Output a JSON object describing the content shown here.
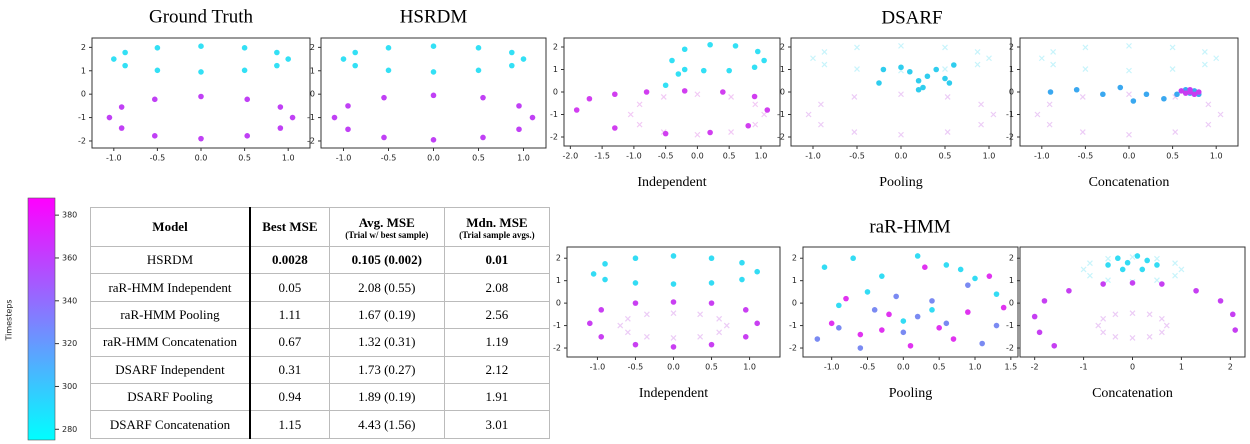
{
  "group_titles": [
    "DSARF",
    "raR-HMM"
  ],
  "chart_data": [
    {
      "type": "scatter",
      "title": "Ground Truth",
      "xlim": [
        -1.25,
        1.25
      ],
      "ylim": [
        -2.3,
        2.4
      ],
      "xticks": [
        {
          "value": -1,
          "label": "-1.0"
        },
        {
          "value": -0.5,
          "label": "-0.5"
        },
        {
          "value": 0,
          "label": "0.0"
        },
        {
          "value": 0.5,
          "label": "0.5"
        },
        {
          "value": 1,
          "label": "1.0"
        }
      ],
      "yticks": [
        -2,
        -1,
        0,
        1,
        2
      ],
      "series": [
        {
          "color": "#33e0f5",
          "marker": "o",
          "x": [
            1,
            0.87,
            0.5,
            0,
            -0.5,
            -0.87,
            -1,
            -0.87,
            -0.5,
            0,
            0.5,
            0.87
          ],
          "y": [
            1.5,
            1.78,
            1.98,
            2.05,
            1.98,
            1.78,
            1.5,
            1.22,
            1.02,
            0.95,
            1.02,
            1.22
          ]
        },
        {
          "color": "#c040f5",
          "marker": "o",
          "x": [
            1.05,
            0.91,
            0.53,
            0,
            -0.53,
            -0.91,
            -1.05,
            -0.91,
            -0.53,
            0,
            0.53,
            0.91
          ],
          "y": [
            -1,
            -0.55,
            -0.22,
            -0.1,
            -0.22,
            -0.55,
            -1,
            -1.45,
            -1.78,
            -1.9,
            -1.78,
            -1.45
          ]
        }
      ]
    },
    {
      "type": "scatter",
      "title": "HSRDM",
      "xlim": [
        -1.25,
        1.25
      ],
      "ylim": [
        -2.3,
        2.4
      ],
      "xticks": [
        {
          "value": -1,
          "label": "-1.0"
        },
        {
          "value": -0.5,
          "label": "-0.5"
        },
        {
          "value": 0,
          "label": "0.0"
        },
        {
          "value": 0.5,
          "label": "0.5"
        },
        {
          "value": 1,
          "label": "1.0"
        }
      ],
      "yticks": [
        -2,
        -1,
        0,
        1,
        2
      ],
      "series": [
        {
          "color": "#33e0f5",
          "marker": "o",
          "x": [
            1,
            0.87,
            0.5,
            0,
            -0.5,
            -0.87,
            -1,
            -0.87,
            -0.5,
            0,
            0.5,
            0.87
          ],
          "y": [
            1.5,
            1.78,
            1.98,
            2.05,
            1.98,
            1.78,
            1.5,
            1.22,
            1.02,
            0.95,
            1.02,
            1.22
          ]
        },
        {
          "color": "#c040f5",
          "marker": "o",
          "x": [
            1.1,
            0.95,
            0.55,
            0,
            -0.55,
            -0.95,
            -1.1,
            -0.95,
            -0.55,
            0,
            0.55,
            0.95
          ],
          "y": [
            -1,
            -0.5,
            -0.15,
            -0.05,
            -0.15,
            -0.5,
            -1,
            -1.5,
            -1.85,
            -1.95,
            -1.85,
            -1.5
          ]
        }
      ]
    },
    {
      "type": "scatter",
      "caption": "Independent",
      "xlim": [
        -2.1,
        1.3
      ],
      "ylim": [
        -2.4,
        2.4
      ],
      "xticks": [
        {
          "value": -2,
          "label": "-2.0"
        },
        {
          "value": -1.5,
          "label": "-1.5"
        },
        {
          "value": -1,
          "label": "-1.0"
        },
        {
          "value": -0.5,
          "label": "-0.5"
        },
        {
          "value": 0,
          "label": "0.0"
        },
        {
          "value": 0.5,
          "label": "0.5"
        },
        {
          "value": 1,
          "label": "1.0"
        }
      ],
      "yticks": [
        -2,
        -1,
        0,
        1,
        2
      ],
      "series": [
        {
          "color": "#f2c9f5",
          "marker": "x",
          "x": [
            1.05,
            0.91,
            0.53,
            0,
            -0.53,
            -0.91,
            -1.05,
            -0.91,
            -0.53,
            0,
            0.53,
            0.91
          ],
          "y": [
            -1,
            -0.55,
            -0.22,
            -0.1,
            -0.22,
            -0.55,
            -1,
            -1.45,
            -1.78,
            -1.9,
            -1.78,
            -1.45
          ]
        },
        {
          "color": "#33e0f5",
          "marker": "o",
          "x": [
            -0.5,
            -0.3,
            -0.4,
            -0.2,
            0.2,
            0.6,
            0.95,
            1.05,
            0.9,
            0.5,
            0.1,
            -0.2
          ],
          "y": [
            0.3,
            0.8,
            1.4,
            1.9,
            2.1,
            2.05,
            1.8,
            1.4,
            1.1,
            0.95,
            0.95,
            1.0
          ]
        },
        {
          "color": "#d13ef0",
          "marker": "o",
          "x": [
            -1.9,
            -1.7,
            -1.3,
            -0.8,
            -0.2,
            0.4,
            0.9,
            1.1,
            0.8,
            0.2,
            -0.5,
            -1.3
          ],
          "y": [
            -0.8,
            -0.3,
            -0.1,
            0,
            0.05,
            0,
            -0.2,
            -0.8,
            -1.5,
            -1.8,
            -1.85,
            -1.6
          ]
        }
      ]
    },
    {
      "type": "scatter",
      "caption": "Pooling",
      "xlim": [
        -1.25,
        1.25
      ],
      "ylim": [
        -2.4,
        2.4
      ],
      "xticks": [
        {
          "value": -1,
          "label": "-1.0"
        },
        {
          "value": -0.5,
          "label": "-0.5"
        },
        {
          "value": 0,
          "label": "0.0"
        },
        {
          "value": 0.5,
          "label": "0.5"
        },
        {
          "value": 1,
          "label": "1.0"
        }
      ],
      "yticks": [
        -2,
        -1,
        0,
        1,
        2
      ],
      "series": [
        {
          "color": "#c8f4fb",
          "marker": "x",
          "x": [
            1,
            0.87,
            0.5,
            0,
            -0.5,
            -0.87,
            -1,
            -0.87,
            -0.5,
            0,
            0.5,
            0.87
          ],
          "y": [
            1.5,
            1.78,
            1.98,
            2.05,
            1.98,
            1.78,
            1.5,
            1.22,
            1.02,
            0.95,
            1.02,
            1.22
          ]
        },
        {
          "color": "#ecccf6",
          "marker": "x",
          "x": [
            1.05,
            0.91,
            0.53,
            0,
            -0.53,
            -0.91,
            -1.05,
            -0.91,
            -0.53,
            0,
            0.53,
            0.91
          ],
          "y": [
            -1,
            -0.55,
            -0.22,
            -0.1,
            -0.22,
            -0.55,
            -1,
            -1.45,
            -1.78,
            -1.9,
            -1.78,
            -1.45
          ]
        },
        {
          "color": "#2fcdee",
          "marker": "o",
          "x": [
            -0.25,
            -0.2,
            0,
            0.1,
            0.2,
            0.3,
            0.4,
            0.5,
            0.55,
            0.6,
            0.25,
            0.2
          ],
          "y": [
            0.4,
            1.0,
            1.1,
            0.9,
            0.5,
            0.7,
            1.0,
            0.6,
            0.4,
            1.2,
            0.2,
            0.1
          ]
        }
      ]
    },
    {
      "type": "scatter",
      "caption": "Concatenation",
      "xlim": [
        -1.25,
        1.25
      ],
      "ylim": [
        -2.4,
        2.4
      ],
      "xticks": [
        {
          "value": -1,
          "label": "-1.0"
        },
        {
          "value": -0.5,
          "label": "-0.5"
        },
        {
          "value": 0,
          "label": "0.0"
        },
        {
          "value": 0.5,
          "label": "0.5"
        },
        {
          "value": 1,
          "label": "1.0"
        }
      ],
      "yticks": [
        -2,
        -1,
        0,
        1,
        2
      ],
      "series": [
        {
          "color": "#c8f4fb",
          "marker": "x",
          "x": [
            1,
            0.87,
            0.5,
            0,
            -0.5,
            -0.87,
            -1,
            -0.87,
            -0.5,
            0,
            0.5,
            0.87
          ],
          "y": [
            1.5,
            1.78,
            1.98,
            2.05,
            1.98,
            1.78,
            1.5,
            1.22,
            1.02,
            0.95,
            1.02,
            1.22
          ]
        },
        {
          "color": "#ecccf6",
          "marker": "x",
          "x": [
            1.05,
            0.91,
            0.53,
            0,
            -0.53,
            -0.91,
            -1.05,
            -0.91,
            -0.53,
            0,
            0.53,
            0.91
          ],
          "y": [
            -1,
            -0.55,
            -0.22,
            -0.1,
            -0.22,
            -0.55,
            -1,
            -1.45,
            -1.78,
            -1.9,
            -1.78,
            -1.45
          ]
        },
        {
          "color": "#3aa8f0",
          "marker": "o",
          "x": [
            -0.9,
            -0.6,
            -0.3,
            -0.1,
            0.05,
            0.2,
            0.4,
            0.55,
            0.65,
            0.7,
            0.75,
            0.8
          ],
          "y": [
            0.0,
            0.1,
            -0.1,
            0.2,
            -0.4,
            -0.1,
            -0.3,
            -0.1,
            0.1,
            -0.05,
            0.05,
            -0.1
          ]
        },
        {
          "color": "#c83cf0",
          "marker": "o",
          "x": [
            0.6,
            0.65,
            0.7,
            0.75,
            0.8,
            0.7
          ],
          "y": [
            0.05,
            -0.05,
            0.1,
            -0.1,
            0,
            0
          ]
        }
      ]
    },
    {
      "type": "scatter",
      "caption": "Independent",
      "xlim": [
        -1.4,
        1.4
      ],
      "ylim": [
        -2.4,
        2.5
      ],
      "xticks": [
        {
          "value": -1,
          "label": "-1.0"
        },
        {
          "value": -0.5,
          "label": "-0.5"
        },
        {
          "value": 0,
          "label": "0.0"
        },
        {
          "value": 0.5,
          "label": "0.5"
        },
        {
          "value": 1,
          "label": "1.0"
        }
      ],
      "yticks": [
        -2,
        -1,
        0,
        1,
        2
      ],
      "series": [
        {
          "color": "#ecccf6",
          "marker": "x",
          "x": [
            0.7,
            0.6,
            0.35,
            0,
            -0.35,
            -0.6,
            -0.7,
            -0.6,
            -0.35,
            0,
            0.35,
            0.6
          ],
          "y": [
            -1,
            -0.7,
            -0.5,
            -0.45,
            -0.5,
            -0.7,
            -1,
            -1.3,
            -1.5,
            -1.55,
            -1.5,
            -1.3
          ]
        },
        {
          "color": "#33dcf4",
          "marker": "o",
          "x": [
            -1.05,
            -0.9,
            -0.5,
            0,
            0.5,
            0.9,
            1.1,
            0.9,
            0.5,
            0,
            -0.5,
            -0.9
          ],
          "y": [
            1.3,
            1.75,
            2.0,
            2.1,
            2.0,
            1.8,
            1.4,
            1.05,
            0.9,
            0.85,
            0.9,
            1.05
          ]
        },
        {
          "color": "#c93ff2",
          "marker": "o",
          "x": [
            -1.1,
            -0.95,
            -0.5,
            0,
            0.5,
            0.95,
            1.1,
            0.95,
            0.5,
            0,
            -0.5,
            -0.95
          ],
          "y": [
            -0.9,
            -0.3,
            0,
            0.05,
            0,
            -0.3,
            -0.9,
            -1.5,
            -1.85,
            -1.95,
            -1.85,
            -1.5
          ]
        }
      ]
    },
    {
      "type": "scatter",
      "caption": "Pooling",
      "xlim": [
        -1.4,
        1.6
      ],
      "ylim": [
        -2.4,
        2.5
      ],
      "xticks": [
        {
          "value": -1,
          "label": "-1.0"
        },
        {
          "value": -0.5,
          "label": "-0.5"
        },
        {
          "value": 0,
          "label": "0.0"
        },
        {
          "value": 0.5,
          "label": "0.5"
        },
        {
          "value": 1,
          "label": "1.0"
        },
        {
          "value": 1.5,
          "label": "1.5"
        }
      ],
      "yticks": [
        -2,
        -1,
        0,
        1,
        2
      ],
      "series": [
        {
          "color": "#33dcf4",
          "marker": "o",
          "x": [
            -1.1,
            -0.7,
            -0.3,
            0.2,
            0.6,
            1.0,
            -0.9,
            0.4,
            1.3,
            -0.5,
            0.8,
            0.0
          ],
          "y": [
            1.6,
            2.0,
            1.2,
            2.1,
            1.7,
            1.1,
            -0.1,
            -0.3,
            0.4,
            0.5,
            1.5,
            -0.8
          ]
        },
        {
          "color": "#e033f0",
          "marker": "o",
          "x": [
            -1.0,
            -0.6,
            -0.2,
            0.1,
            0.5,
            0.9,
            1.2,
            -0.8,
            0.3,
            0.7,
            1.4,
            -0.3
          ],
          "y": [
            -0.9,
            -1.4,
            -0.5,
            -1.9,
            -1.1,
            -0.4,
            1.2,
            0.2,
            1.6,
            -1.6,
            -0.2,
            -1.2
          ]
        },
        {
          "color": "#7a8af2",
          "marker": "o",
          "x": [
            -1.2,
            -0.4,
            0.0,
            0.6,
            1.1,
            -0.9,
            0.4,
            0.9,
            -0.1,
            1.3,
            -0.6,
            0.2
          ],
          "y": [
            -1.6,
            -0.3,
            -1.3,
            -0.9,
            -1.8,
            -1.1,
            0.1,
            0.8,
            0.3,
            -1.0,
            -2.0,
            -0.6
          ]
        }
      ]
    },
    {
      "type": "scatter",
      "caption": "Concatenation",
      "xlim": [
        -2.3,
        2.3
      ],
      "ylim": [
        -2.4,
        2.5
      ],
      "xticks": [
        -2,
        -1,
        0,
        1,
        2
      ],
      "yticks": [
        -2,
        -1,
        0,
        1,
        2
      ],
      "series": [
        {
          "color": "#c8f4fb",
          "marker": "x",
          "x": [
            1,
            0.87,
            0.5,
            0,
            -0.5,
            -0.87,
            -1,
            -0.87,
            -0.5,
            0,
            0.5,
            0.87
          ],
          "y": [
            1.5,
            1.78,
            1.98,
            2.05,
            1.98,
            1.78,
            1.5,
            1.22,
            1.02,
            0.95,
            1.02,
            1.22
          ]
        },
        {
          "color": "#ecccf6",
          "marker": "x",
          "x": [
            0.7,
            0.6,
            0.35,
            0,
            -0.35,
            -0.6,
            -0.7,
            -0.6,
            -0.35,
            0,
            0.35,
            0.6
          ],
          "y": [
            -1,
            -0.7,
            -0.5,
            -0.45,
            -0.5,
            -0.7,
            -1,
            -1.3,
            -1.5,
            -1.55,
            -1.5,
            -1.3
          ]
        },
        {
          "color": "#c63ff2",
          "marker": "o",
          "x": [
            -2.0,
            -1.8,
            -1.3,
            -0.6,
            0,
            0.6,
            1.3,
            1.8,
            2.05,
            2.1,
            -1.9,
            -1.6
          ],
          "y": [
            -0.6,
            0.1,
            0.55,
            0.85,
            0.9,
            0.85,
            0.55,
            0.1,
            -0.5,
            -1.2,
            -1.3,
            -1.9
          ]
        },
        {
          "color": "#33dcf4",
          "marker": "o",
          "x": [
            -0.5,
            -0.3,
            -0.1,
            0.1,
            0.3,
            0.5,
            -0.2,
            0.2
          ],
          "y": [
            1.7,
            2.0,
            1.8,
            2.1,
            1.9,
            1.7,
            1.5,
            1.5
          ]
        }
      ]
    },
    {
      "type": "colorbar",
      "label": "Timesteps",
      "ylim": [
        275,
        388
      ],
      "yticks": [
        280,
        300,
        320,
        340,
        360,
        380
      ],
      "colors": [
        "#00ffff",
        "#ff00ff"
      ]
    }
  ],
  "table": {
    "header": [
      {
        "title": "Model"
      },
      {
        "title": "Best MSE"
      },
      {
        "title": "Avg. MSE",
        "sub": "(Trial w/ best sample)"
      },
      {
        "title": "Mdn. MSE",
        "sub": "(Trial sample avgs.)"
      }
    ],
    "rows": [
      [
        "HSRDM",
        "0.0028",
        "0.105 (0.002)",
        "0.01"
      ],
      [
        "raR-HMM Independent",
        "0.05",
        "2.08 (0.55)",
        "2.08"
      ],
      [
        "raR-HMM Pooling",
        "1.11",
        "1.67 (0.19)",
        "2.56"
      ],
      [
        "raR-HMM Concatenation",
        "0.67",
        "1.32 (0.31)",
        "1.19"
      ],
      [
        "DSARF Independent",
        "0.31",
        "1.73 (0.27)",
        "2.12"
      ],
      [
        "DSARF Pooling",
        "0.94",
        "1.89 (0.19)",
        "1.91"
      ],
      [
        "DSARF Concatenation",
        "1.15",
        "4.43 (1.56)",
        "3.01"
      ]
    ]
  }
}
